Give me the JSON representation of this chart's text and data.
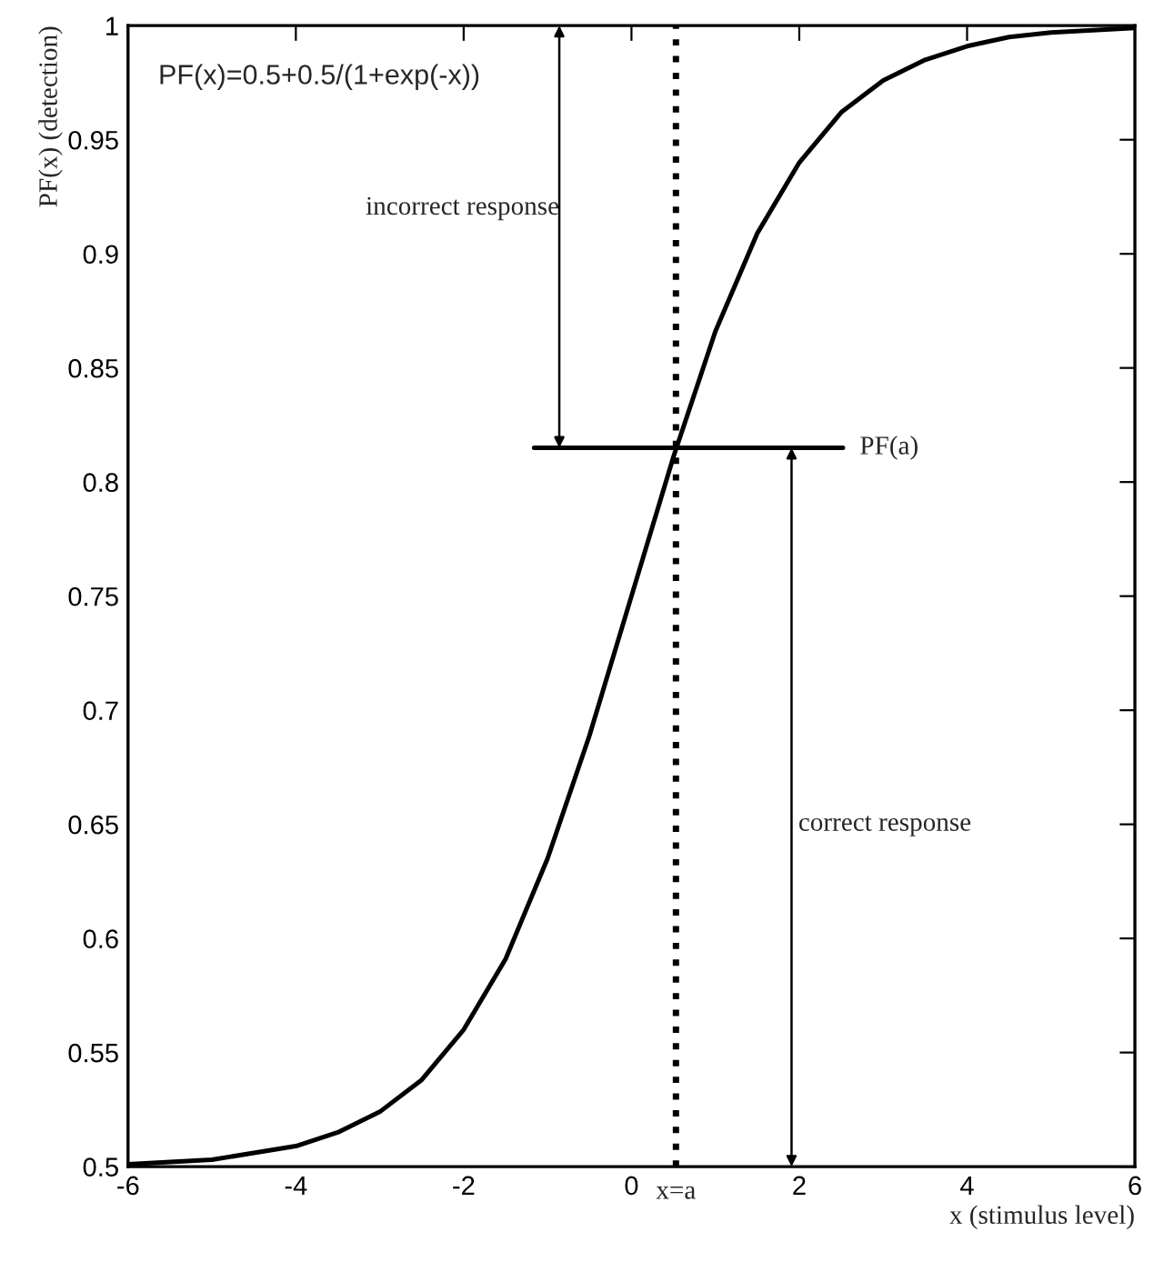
{
  "chart_data": {
    "type": "line",
    "xlabel": "x (stimulus level)",
    "ylabel": "PF(x) (detection)",
    "x": [
      -6,
      -5.5,
      -5,
      -4.5,
      -4,
      -3.5,
      -3,
      -2.5,
      -2,
      -1.5,
      -1,
      -0.5,
      0,
      0.5,
      1,
      1.5,
      2,
      2.5,
      3,
      3.5,
      4,
      4.5,
      5,
      5.5,
      6
    ],
    "series": [
      {
        "color": "#000000",
        "values": [
          0.501,
          0.502,
          0.503,
          0.506,
          0.509,
          0.515,
          0.524,
          0.538,
          0.56,
          0.591,
          0.635,
          0.689,
          0.75,
          0.811,
          0.866,
          0.909,
          0.94,
          0.962,
          0.976,
          0.985,
          0.991,
          0.995,
          0.997,
          0.998,
          0.999
        ]
      },
      {
        "color": "#000000",
        "x": [
          -1.16,
          2.52
        ],
        "values": [
          0.815,
          0.815
        ]
      }
    ],
    "xlim": [
      -6,
      6
    ],
    "ylim": [
      0.5,
      1
    ],
    "xticks": [
      -6,
      -4,
      -2,
      0,
      2,
      4,
      6
    ],
    "yticks": [
      0.5,
      0.55,
      0.6,
      0.65,
      0.7,
      0.75,
      0.8,
      0.85,
      0.9,
      0.95,
      1
    ],
    "ref_lines": [
      {
        "axis": "x",
        "value": 0.53,
        "label": "x=a",
        "line_style": "dotted",
        "color": "#000000"
      }
    ],
    "annotations": [
      "PF(x)=0.5+0.5/(1+exp(-x))",
      {
        "text": "PF(a)",
        "x": 2.52,
        "y": 0.815
      },
      "incorrect response",
      "correct response"
    ],
    "grid": false,
    "marker": "none",
    "line_style": "solid"
  }
}
